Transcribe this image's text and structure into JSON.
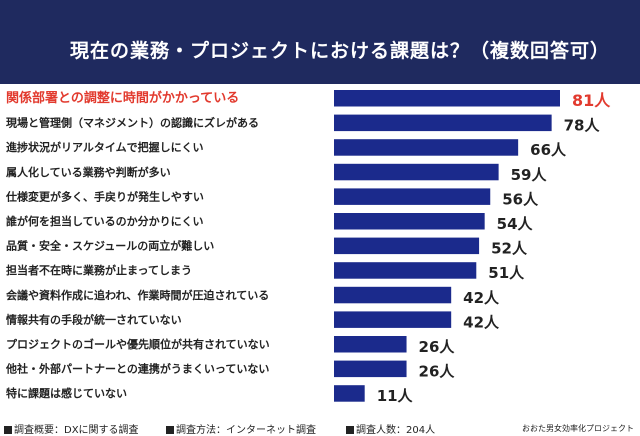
{
  "header": {
    "title": "現在の業務・プロジェクトにおける課題は？（複数回答可）"
  },
  "colors": {
    "header_bg": "#1f2a5f",
    "bar": "#1b2a8c",
    "highlight": "#e23a2e",
    "text": "#222222"
  },
  "chart_data": {
    "type": "bar",
    "orientation": "horizontal",
    "title": "現在の業務・プロジェクトにおける課題は？（複数回答可）",
    "unit": "人",
    "xlim": [
      0,
      81
    ],
    "highlight_index": 0,
    "categories": [
      "関係部署との調整に時間がかかっている",
      "現場と管理側（マネジメント）の認識にズレがある",
      "進捗状況がリアルタイムで把握しにくい",
      "属人化している業務や判断が多い",
      "仕様変更が多く、手戻りが発生しやすい",
      "誰が何を担当しているのか分かりにくい",
      "品質・安全・スケジュールの両立が難しい",
      "担当者不在時に業務が止まってしまう",
      "会議や資料作成に追われ、作業時間が圧迫されている",
      "情報共有の手段が統一されていない",
      "プロジェクトのゴールや優先順位が共有されていない",
      "他社・外部パートナーとの連携がうまくいっていない",
      "特に課題は感じていない"
    ],
    "values": [
      81,
      78,
      66,
      59,
      56,
      54,
      52,
      51,
      42,
      42,
      26,
      26,
      11
    ],
    "value_labels": [
      "81人",
      "78人",
      "66人",
      "59人",
      "56人",
      "54人",
      "52人",
      "51人",
      "42人",
      "42人",
      "26人",
      "26人",
      "11人"
    ]
  },
  "footer": {
    "survey_overview": "調査概要：DXに関する調査",
    "survey_method": "調査方法：インターネット調査",
    "respondents": "調査人数：204人",
    "credit": "おおた男女効率化プロジェクト"
  }
}
